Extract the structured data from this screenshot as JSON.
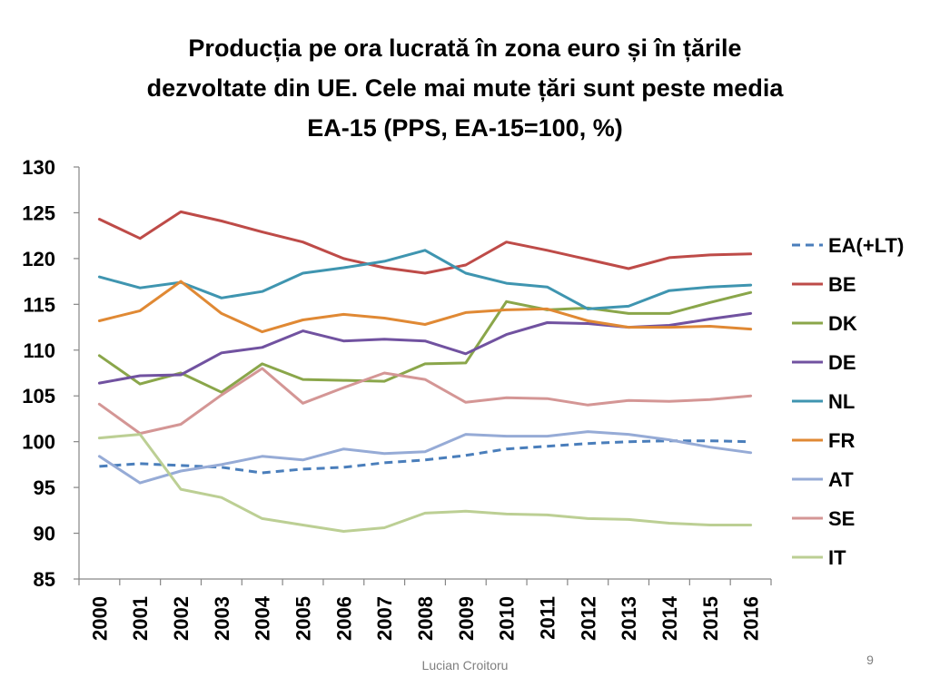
{
  "slide": {
    "footer": "Lucian Croitoru",
    "page_number": "9"
  },
  "chart_data": {
    "type": "line",
    "title_lines": [
      "Producția pe ora lucrată în zona euro și în țările",
      "dezvoltate din UE. Cele mai mute țări sunt peste media",
      "EA-15 (PPS, EA-15=100, %)"
    ],
    "title": "Producția pe ora lucrată în zona euro și în țările dezvoltate din UE. Cele mai mute țări sunt peste media EA-15 (PPS, EA-15=100, %)",
    "xlabel": "",
    "ylabel": "",
    "ylim": [
      85,
      130
    ],
    "yticks": [
      85,
      90,
      95,
      100,
      105,
      110,
      115,
      120,
      125,
      130
    ],
    "categories": [
      "2000",
      "2001",
      "2002",
      "2003",
      "2004",
      "2005",
      "2006",
      "2007",
      "2008",
      "2009",
      "2010",
      "2011",
      "2012",
      "2013",
      "2014",
      "2015",
      "2016"
    ],
    "grid": false,
    "legend_position": "right",
    "series": [
      {
        "name": "EA(+LT)",
        "color": "#4a7ebb",
        "dashed": true,
        "values": [
          97.3,
          97.6,
          97.4,
          97.2,
          96.6,
          97.0,
          97.2,
          97.7,
          98.0,
          98.5,
          99.2,
          99.5,
          99.8,
          100.0,
          100.1,
          100.1,
          100.0
        ]
      },
      {
        "name": "BE",
        "color": "#be4b48",
        "dashed": false,
        "values": [
          124.3,
          122.2,
          125.1,
          124.1,
          122.9,
          121.8,
          120.0,
          119.0,
          118.4,
          119.3,
          121.8,
          120.9,
          119.9,
          118.9,
          120.1,
          120.4,
          120.5
        ]
      },
      {
        "name": "DK",
        "color": "#8aa64a",
        "dashed": false,
        "values": [
          109.4,
          106.3,
          107.5,
          105.4,
          108.5,
          106.8,
          106.7,
          106.6,
          108.5,
          108.6,
          115.3,
          114.4,
          114.6,
          114.0,
          114.0,
          115.2,
          116.3
        ]
      },
      {
        "name": "DE",
        "color": "#7152a0",
        "dashed": false,
        "values": [
          106.4,
          107.2,
          107.3,
          109.7,
          110.3,
          112.1,
          111.0,
          111.2,
          111.0,
          109.6,
          111.7,
          113.0,
          112.9,
          112.5,
          112.7,
          113.4,
          114.0
        ]
      },
      {
        "name": "NL",
        "color": "#3f95b0",
        "dashed": false,
        "values": [
          118.0,
          116.8,
          117.4,
          115.7,
          116.4,
          118.4,
          119.0,
          119.7,
          120.9,
          118.4,
          117.3,
          116.9,
          114.5,
          114.8,
          116.5,
          116.9,
          117.1
        ]
      },
      {
        "name": "FR",
        "color": "#e08934",
        "dashed": false,
        "values": [
          113.2,
          114.3,
          117.5,
          114.0,
          112.0,
          113.3,
          113.9,
          113.5,
          112.8,
          114.1,
          114.4,
          114.5,
          113.2,
          112.5,
          112.5,
          112.6,
          112.3
        ]
      },
      {
        "name": "AT",
        "color": "#96abd6",
        "dashed": false,
        "values": [
          98.4,
          95.5,
          96.8,
          97.5,
          98.4,
          98.0,
          99.2,
          98.7,
          98.9,
          100.8,
          100.6,
          100.6,
          101.1,
          100.8,
          100.2,
          99.4,
          98.8
        ]
      },
      {
        "name": "SE",
        "color": "#d49695",
        "dashed": false,
        "values": [
          104.1,
          100.9,
          101.9,
          105.1,
          108.0,
          104.2,
          105.9,
          107.5,
          106.8,
          104.3,
          104.8,
          104.7,
          104.0,
          104.5,
          104.4,
          104.6,
          105.0
        ]
      },
      {
        "name": "IT",
        "color": "#bccf94",
        "dashed": false,
        "values": [
          100.4,
          100.8,
          94.8,
          93.9,
          91.6,
          90.9,
          90.2,
          90.6,
          92.2,
          92.4,
          92.1,
          92.0,
          91.6,
          91.5,
          91.1,
          90.9,
          90.9
        ]
      }
    ]
  }
}
